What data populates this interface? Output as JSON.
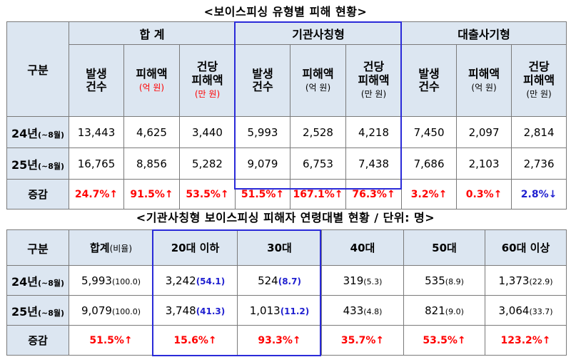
{
  "table1": {
    "title": "<보이스피싱 유형별 피해 현황>",
    "row_header": "구분",
    "groups": [
      "합 계",
      "기관사칭형",
      "대출사기형"
    ],
    "sub": {
      "cases_l1": "발생",
      "cases_l2": "건수",
      "amount_l1": "피해액",
      "amount_unit": "(억 원)",
      "per_l1": "건당",
      "per_l2": "피해액",
      "per_unit": "(만 원)"
    },
    "rows": [
      {
        "label": "24년",
        "period": "(~8월)",
        "values": [
          "13,443",
          "4,625",
          "3,440",
          "5,993",
          "2,528",
          "4,218",
          "7,450",
          "2,097",
          "2,814"
        ]
      },
      {
        "label": "25년",
        "period": "(~8월)",
        "values": [
          "16,765",
          "8,856",
          "5,282",
          "9,079",
          "6,753",
          "7,438",
          "7,686",
          "2,103",
          "2,736"
        ]
      }
    ],
    "change_label": "증감",
    "change": [
      "24.7%↑",
      "91.5%↑",
      "53.5%↑",
      "51.5%↑",
      "167.1%↑",
      "76.3%↑",
      "3.2%↑",
      "0.3%↑",
      "2.8%↓"
    ],
    "colors": {
      "increase": "#ff0000",
      "decrease": "#1f1fd0",
      "header_bg": "#dce6f1",
      "highlight": "#2a2ad8"
    }
  },
  "table2": {
    "title": "<기관사칭형 보이스피싱 피해자 연령대별 현황 / 단위: 명>",
    "row_header": "구분",
    "headers": {
      "total": "합계",
      "total_sub": "(비율)",
      "age": [
        "20대 이하",
        "30대",
        "40대",
        "50대",
        "60대 이상"
      ]
    },
    "rows": [
      {
        "label": "24년",
        "period": "(~8월)",
        "total": "5,993",
        "total_pct": "(100.0)",
        "cells": [
          {
            "n": "3,242",
            "p": "(54.1)"
          },
          {
            "n": "524",
            "p": "(8.7)"
          },
          {
            "n": "319",
            "p": "(5.3)"
          },
          {
            "n": "535",
            "p": "(8.9)"
          },
          {
            "n": "1,373",
            "p": "(22.9)"
          }
        ]
      },
      {
        "label": "25년",
        "period": "(~8월)",
        "total": "9,079",
        "total_pct": "(100.0)",
        "cells": [
          {
            "n": "3,748",
            "p": "(41.3)"
          },
          {
            "n": "1,013",
            "p": "(11.2)"
          },
          {
            "n": "433",
            "p": "(4.8)"
          },
          {
            "n": "821",
            "p": "(9.0)"
          },
          {
            "n": "3,064",
            "p": "(33.7)"
          }
        ]
      }
    ],
    "change_label": "증감",
    "change": [
      "51.5%↑",
      "15.6%↑",
      "93.3%↑",
      "35.7%↑",
      "53.5%↑",
      "123.2%↑"
    ]
  }
}
